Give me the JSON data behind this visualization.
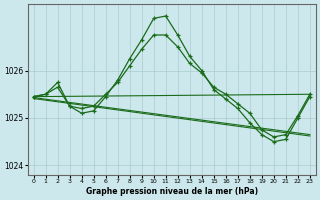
{
  "xlabel": "Graphe pression niveau de la mer (hPa)",
  "bg_color": "#cce8ec",
  "grid_color": "#aacccc",
  "line_color": "#1a6b1a",
  "ylim": [
    1023.8,
    1027.4
  ],
  "xlim": [
    -0.5,
    23.5
  ],
  "yticks": [
    1024,
    1025,
    1026
  ],
  "xticks": [
    0,
    1,
    2,
    3,
    4,
    5,
    6,
    7,
    8,
    9,
    10,
    11,
    12,
    13,
    14,
    15,
    16,
    17,
    18,
    19,
    20,
    21,
    22,
    23
  ],
  "series_upper": {
    "x": [
      0,
      1,
      2,
      3,
      4,
      5,
      6,
      7,
      8,
      9,
      10,
      11,
      12,
      13,
      14,
      15,
      16,
      17,
      18,
      19,
      20,
      21,
      22,
      23
    ],
    "y": [
      1025.45,
      1025.5,
      1025.65,
      1025.25,
      1025.2,
      1025.25,
      1025.5,
      1025.75,
      1026.1,
      1026.45,
      1026.75,
      1026.75,
      1026.5,
      1026.15,
      1025.95,
      1025.65,
      1025.5,
      1025.3,
      1025.1,
      1024.75,
      1024.6,
      1024.65,
      1025.05,
      1025.5
    ]
  },
  "series_peak": {
    "x": [
      0,
      1,
      2,
      3,
      4,
      5,
      6,
      7,
      8,
      9,
      10,
      11,
      12,
      13,
      14,
      15,
      16,
      17,
      18,
      19,
      20,
      21,
      22,
      23
    ],
    "y": [
      1025.45,
      1025.5,
      1025.75,
      1025.25,
      1025.1,
      1025.15,
      1025.45,
      1025.8,
      1026.25,
      1026.65,
      1027.1,
      1027.15,
      1026.75,
      1026.3,
      1026.0,
      1025.6,
      1025.4,
      1025.2,
      1024.9,
      1024.65,
      1024.5,
      1024.55,
      1025.0,
      1025.45
    ]
  },
  "diag_lines": [
    {
      "x0": 0,
      "y0": 1025.45,
      "x1": 23,
      "y1": 1025.5
    },
    {
      "x0": 0,
      "y0": 1025.43,
      "x1": 23,
      "y1": 1024.65
    },
    {
      "x0": 0,
      "y0": 1025.41,
      "x1": 23,
      "y1": 1024.62
    }
  ]
}
